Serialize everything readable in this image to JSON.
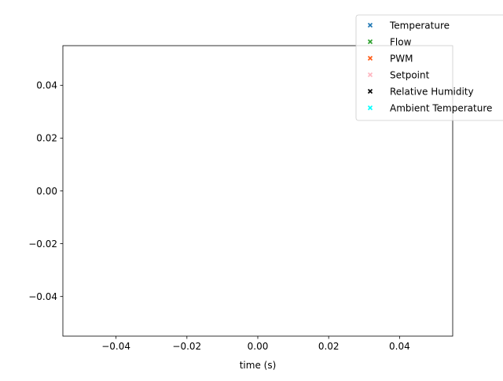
{
  "chart_data": {
    "type": "scatter",
    "title": "",
    "xlabel": "time (s)",
    "ylabel": "",
    "xlim": [
      -0.055,
      0.055
    ],
    "ylim": [
      -0.055,
      0.055
    ],
    "x_ticks": [
      -0.04,
      -0.02,
      0.0,
      0.02,
      0.04
    ],
    "x_tick_labels": [
      "−0.04",
      "−0.02",
      "0.00",
      "0.02",
      "0.04"
    ],
    "y_ticks": [
      -0.04,
      -0.02,
      0.0,
      0.02,
      0.04
    ],
    "y_tick_labels": [
      "−0.04",
      "−0.02",
      "0.00",
      "0.02",
      "0.04"
    ],
    "grid": false,
    "legend_position": "top-right",
    "series": [
      {
        "name": "Temperature",
        "color": "#1f77b4",
        "marker": "x",
        "x": [],
        "y": []
      },
      {
        "name": "Flow",
        "color": "#2ca02c",
        "marker": "x",
        "x": [],
        "y": []
      },
      {
        "name": "PWM",
        "color": "#ff5a14",
        "marker": "x",
        "x": [],
        "y": []
      },
      {
        "name": "Setpoint",
        "color": "#ffb6c1",
        "marker": "x",
        "x": [],
        "y": []
      },
      {
        "name": "Relative Humidity",
        "color": "#000000",
        "marker": "x",
        "x": [],
        "y": []
      },
      {
        "name": "Ambient Temperature",
        "color": "#00ffff",
        "marker": "x",
        "x": [],
        "y": []
      }
    ]
  }
}
